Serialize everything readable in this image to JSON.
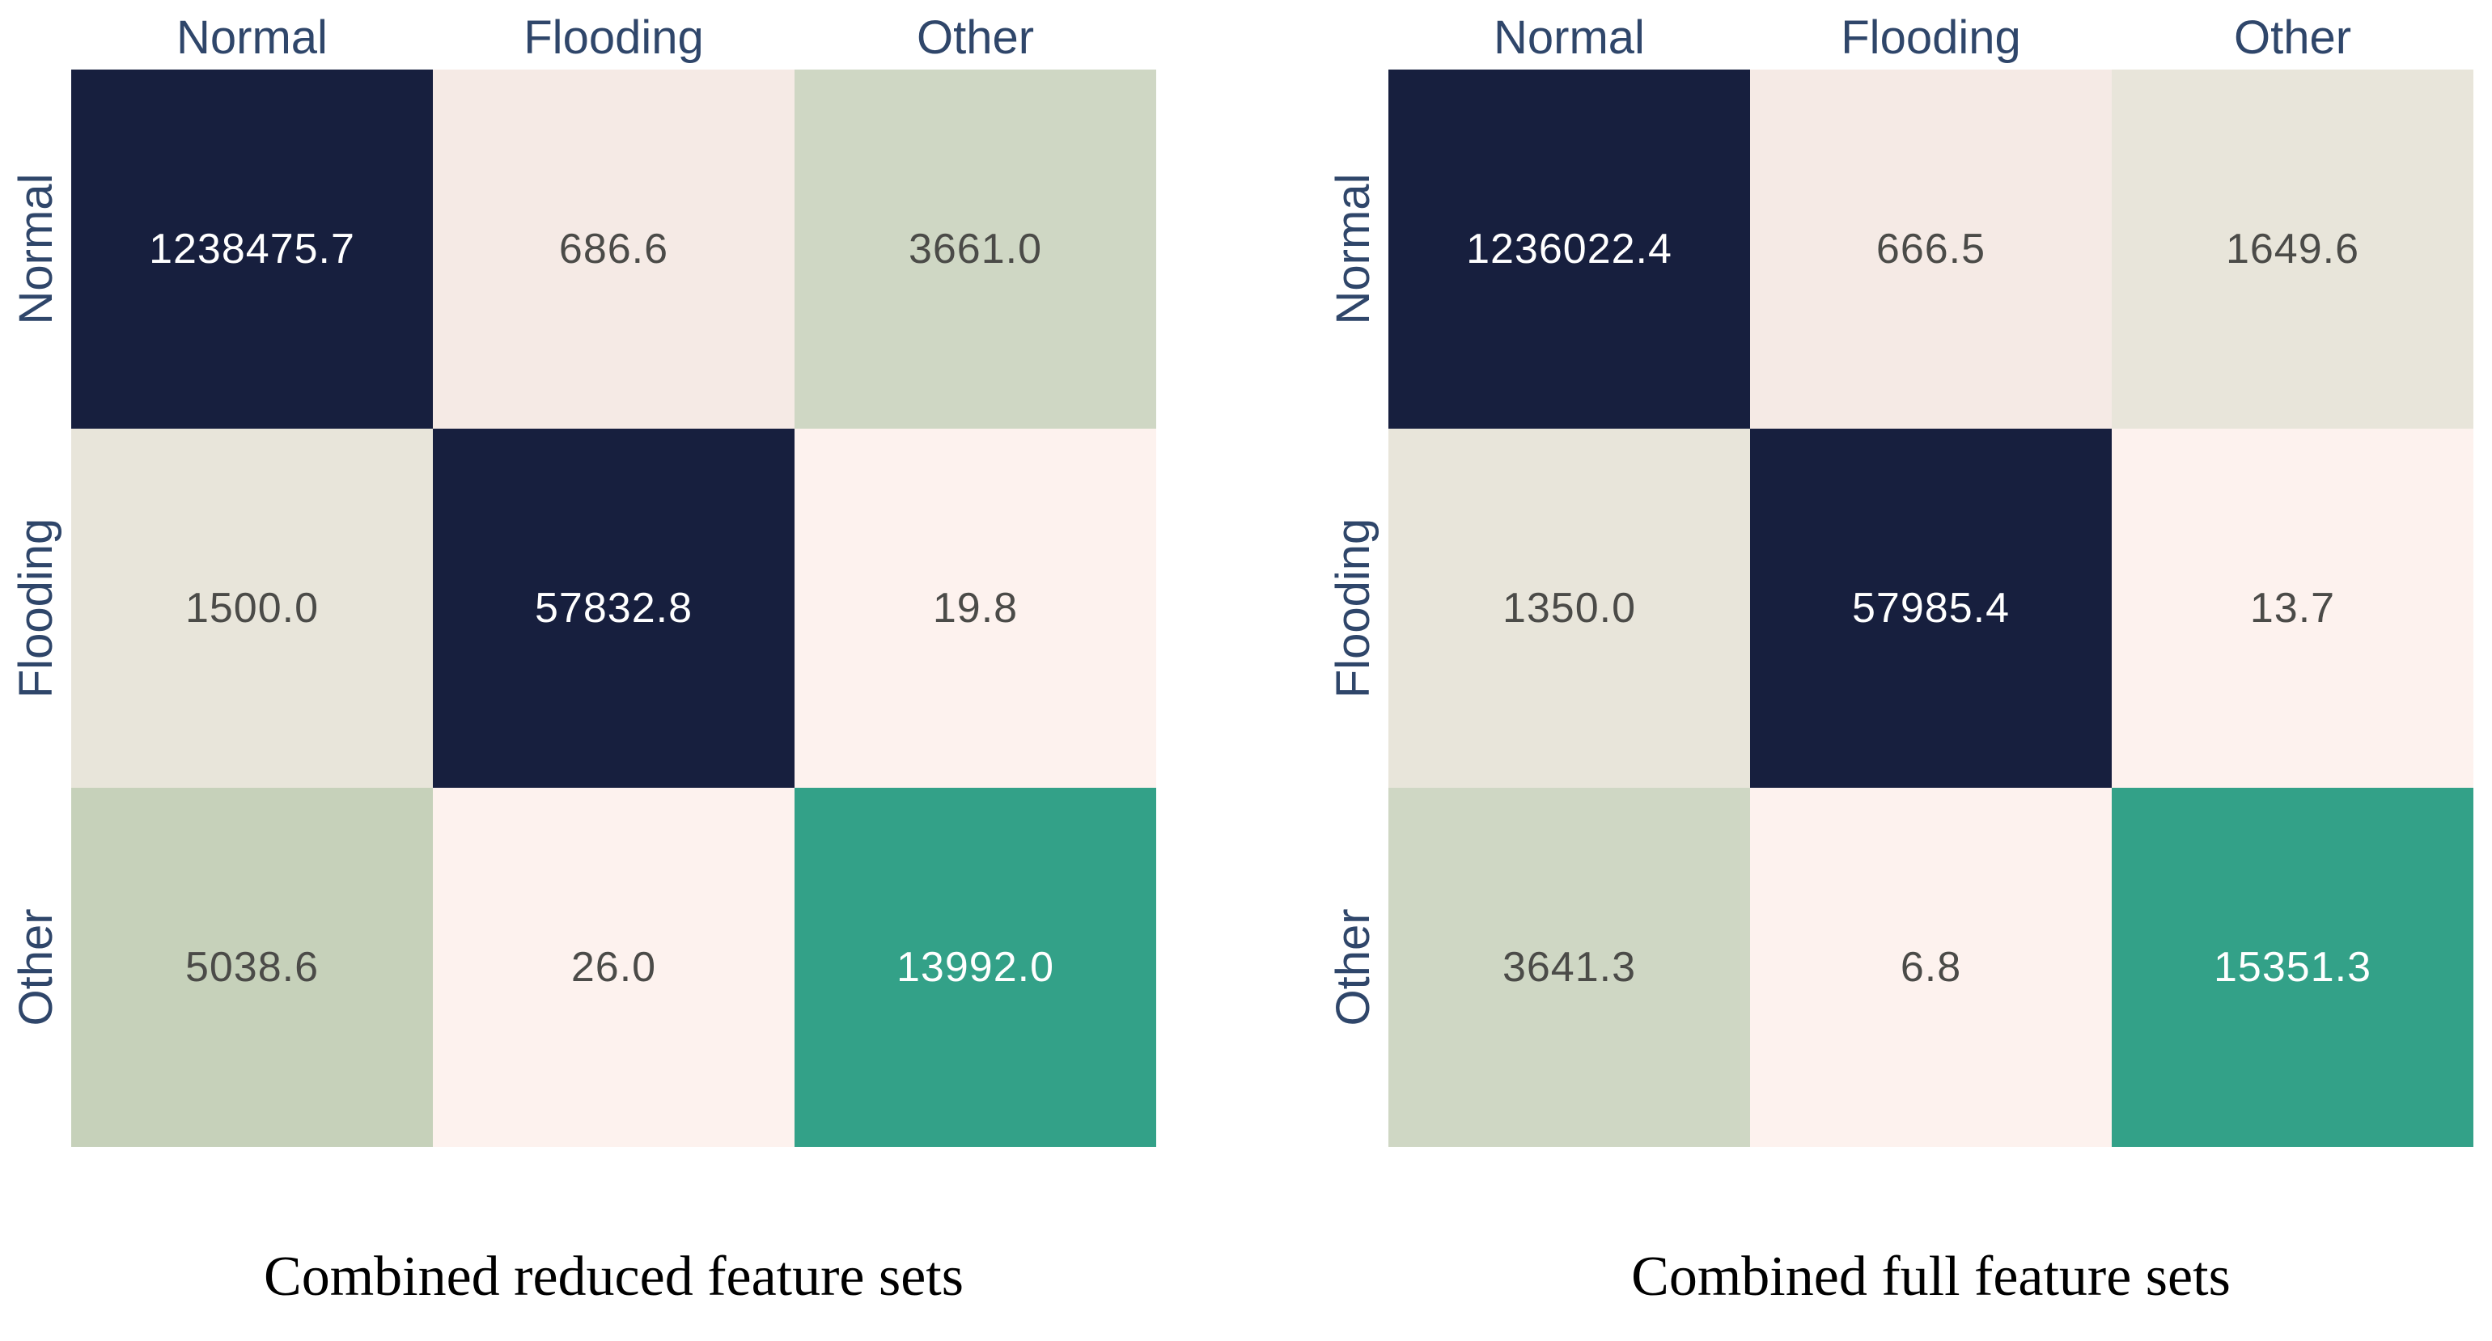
{
  "page": {
    "background": "#ffffff",
    "description_labels": {
      "left_caption": "Combined reduced feature sets",
      "right_caption": "Combined full feature sets"
    }
  },
  "colors": {
    "header_label_blue": "#2f466a",
    "cell_text_dark": "#4b4b48",
    "cell_text_light": "#ffffff",
    "navy": "#171f3e",
    "teal": "#33a188",
    "sage": "#cfd7c4",
    "sage_dark": "#c6d1ba",
    "beige": "#e8e5da",
    "pink": "#f5eae5",
    "pink_light": "#fdf2ee"
  },
  "chart_data": [
    {
      "type": "heatmap",
      "title": "Combined reduced feature sets",
      "x_categories": [
        "Normal",
        "Flooding",
        "Other"
      ],
      "y_categories": [
        "Normal",
        "Flooding",
        "Other"
      ],
      "x_axis_position": "top",
      "y_label_rotation_deg": 90,
      "grid": false,
      "legend": "none",
      "values": [
        [
          1238475.7,
          686.6,
          3661.0
        ],
        [
          1500.0,
          57832.8,
          19.8
        ],
        [
          5038.6,
          26.0,
          13992.0
        ]
      ],
      "cell_labels": [
        [
          "1238475.7",
          "686.6",
          "3661.0"
        ],
        [
          "1500.0",
          "57832.8",
          "19.8"
        ],
        [
          "5038.6",
          "26.0",
          "13992.0"
        ]
      ],
      "cell_colors": [
        [
          "#171f3e",
          "#f5eae5",
          "#cfd7c4"
        ],
        [
          "#e8e5da",
          "#171f3e",
          "#fdf2ee"
        ],
        [
          "#c6d1ba",
          "#fdf2ee",
          "#33a188"
        ]
      ],
      "text_colors": [
        [
          "#ffffff",
          "#4b4b48",
          "#4b4b48"
        ],
        [
          "#4b4b48",
          "#ffffff",
          "#4b4b48"
        ],
        [
          "#4b4b48",
          "#4b4b48",
          "#ffffff"
        ]
      ]
    },
    {
      "type": "heatmap",
      "title": "Combined full feature sets",
      "x_categories": [
        "Normal",
        "Flooding",
        "Other"
      ],
      "y_categories": [
        "Normal",
        "Flooding",
        "Other"
      ],
      "x_axis_position": "top",
      "y_label_rotation_deg": 90,
      "grid": false,
      "legend": "none",
      "values": [
        [
          1236022.4,
          666.5,
          1649.6
        ],
        [
          1350.0,
          57985.4,
          13.7
        ],
        [
          3641.3,
          6.8,
          15351.3
        ]
      ],
      "cell_labels": [
        [
          "1236022.4",
          "666.5",
          "1649.6"
        ],
        [
          "1350.0",
          "57985.4",
          "13.7"
        ],
        [
          "3641.3",
          "6.8",
          "15351.3"
        ]
      ],
      "cell_colors": [
        [
          "#171f3e",
          "#f5eae5",
          "#e8e5da"
        ],
        [
          "#e8e5da",
          "#171f3e",
          "#fdf2ee"
        ],
        [
          "#cfd7c4",
          "#fdf2ee",
          "#33a188"
        ]
      ],
      "text_colors": [
        [
          "#ffffff",
          "#4b4b48",
          "#4b4b48"
        ],
        [
          "#4b4b48",
          "#ffffff",
          "#4b4b48"
        ],
        [
          "#4b4b48",
          "#4b4b48",
          "#ffffff"
        ]
      ]
    }
  ]
}
